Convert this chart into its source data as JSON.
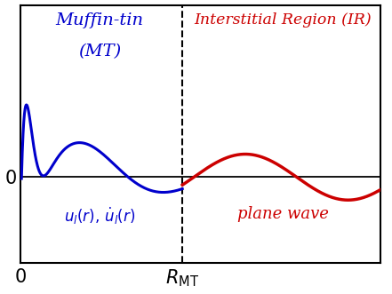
{
  "blue_color": "#0000cc",
  "red_color": "#cc0000",
  "black_color": "#000000",
  "R_MT": 0.45,
  "x_min": 0.0,
  "x_max": 1.0,
  "y_min": -0.75,
  "y_max": 1.5,
  "label_MT_top": "Muffin-tin",
  "label_MT_bottom": "(MT)",
  "label_IR": "Interstitial Region (IR)",
  "label_ul": "$u_l(r),\\, \\dot{u}_l(r)$",
  "label_pw": "plane wave",
  "xlabel_0": "0",
  "xlabel_RMT": "$R_{\\mathrm{MT}}$",
  "background_color": "#ffffff",
  "figsize": [
    4.41,
    3.31
  ],
  "dpi": 100
}
